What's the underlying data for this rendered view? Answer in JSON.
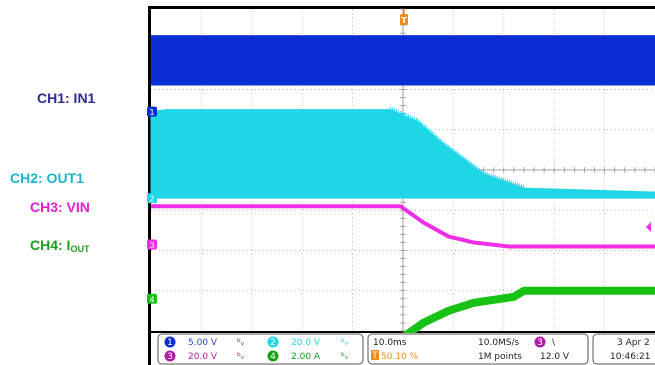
{
  "labels": {
    "ch1": "CH1: IN1",
    "ch2": "CH2: OUT1",
    "ch3": "CH3: VIN",
    "ch4_main": "CH4: I",
    "ch4_sub": "OUT"
  },
  "colors": {
    "ch1": "#0a2ed6",
    "ch1_label": "#2b2d8f",
    "ch2": "#1ed6e6",
    "ch2_label": "#18b4d4",
    "ch3": "#ee2ee6",
    "ch3_label": "#e020d0",
    "ch4": "#17c214",
    "ch4_label": "#1aa01a",
    "trigger": "#f08a18",
    "readout_text": "#2b46c6",
    "background": "#ffffff"
  },
  "readout": {
    "ch1_num": "1",
    "ch1_scale": "5.00 V",
    "ch2_num": "2",
    "ch2_scale": "20.0 V",
    "ch3_num": "3",
    "ch3_scale": "20.0 V",
    "ch4_num": "4",
    "ch4_scale": "2.00 A",
    "bw_symbol": "ᵇᵥ",
    "timebase": "10.0ms",
    "trigger_pos": "50.10 %",
    "trigger_marker": "T",
    "sample_rate": "10.0MS/s",
    "record_length": "1M points",
    "trig_source": "3",
    "trig_slope": "\\",
    "trig_level": "12.0 V",
    "date": "3 Apr 2",
    "time": "10:46:21"
  },
  "chart_data": {
    "type": "line",
    "x_divisions": 10,
    "y_divisions": 8,
    "trigger_time_div": 5,
    "grid": true,
    "series": [
      {
        "key": "ch1",
        "kind": "band",
        "ground_div": 2.55,
        "t": [
          0,
          10
        ],
        "low": [
          0.65,
          0.65
        ],
        "high": [
          1.9,
          1.9
        ]
      },
      {
        "key": "ch2",
        "kind": "fill",
        "ground_div": 4.7,
        "t": [
          0,
          0.3,
          4.75,
          5.3,
          5.8,
          6.6,
          7.4,
          10
        ],
        "v": [
          2.15,
          2.2,
          2.2,
          1.9,
          1.35,
          0.6,
          0.25,
          0.15
        ]
      },
      {
        "key": "ch3",
        "kind": "line",
        "ground_div": 5.85,
        "t": [
          0,
          0.3,
          4.95,
          5.4,
          5.9,
          6.4,
          7.1,
          7.6,
          10
        ],
        "v": [
          0.95,
          0.95,
          0.95,
          0.55,
          0.2,
          0.05,
          -0.05,
          -0.05,
          -0.05
        ]
      },
      {
        "key": "ch4",
        "kind": "line",
        "ground_div": 7.2,
        "t": [
          0,
          0.3,
          4.95,
          5.4,
          5.9,
          6.4,
          7.2,
          7.4,
          10
        ],
        "v": [
          -1.0,
          -1.0,
          -1.0,
          -0.6,
          -0.3,
          -0.1,
          0.05,
          0.2,
          0.2
        ]
      }
    ]
  }
}
